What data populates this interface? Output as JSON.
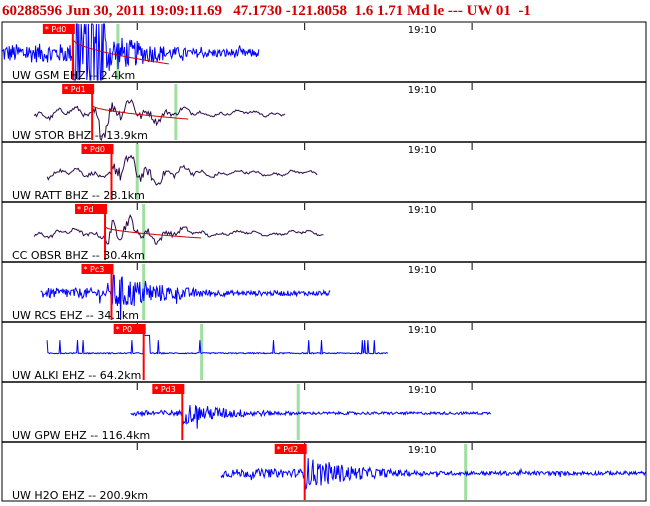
{
  "header": {
    "event_id": "60288596",
    "datetime": "Jun 30, 2011 19:09:11.69",
    "lat": "47.1730",
    "lon": "-121.8058",
    "depth": "1.6",
    "magnitude": "1.71 Md le ---",
    "network": "UW 01",
    "extra": "-1"
  },
  "chart_data": {
    "type": "line",
    "title": "",
    "time_label": "19:10",
    "colors": {
      "trace_blue": "#0000ff",
      "trace_purple": "#2b0a4a",
      "pick_red": "#ff0000",
      "pick_green": "#9fdf9f",
      "model_red": "#cc0000"
    },
    "traces": [
      {
        "label": "UW GSM EHZ -- 2.4km",
        "pick": "* Pd0",
        "color": "#0000ff",
        "t_start": 0.0,
        "t_end": 0.4,
        "p_time": 0.11,
        "s_time": 0.18,
        "amplitude": 1.0,
        "style": "spike",
        "model_curve": true
      },
      {
        "label": "UW STOR BHZ -- 13.9km",
        "pick": "* Pd1",
        "color": "#2b0a4a",
        "t_start": 0.05,
        "t_end": 0.44,
        "p_time": 0.14,
        "s_time": 0.27,
        "amplitude": 0.55,
        "style": "wave",
        "model_curve": true
      },
      {
        "label": "UW RATT BHZ -- 28.1km",
        "pick": "* Pd0",
        "color": "#2b0a4a",
        "t_start": 0.07,
        "t_end": 0.49,
        "p_time": 0.17,
        "s_time": 0.21,
        "amplitude": 0.5,
        "style": "wave",
        "model_curve": false
      },
      {
        "label": "CC OBSR BHZ -- 30.4km",
        "pick": "* Pd",
        "color": "#2b0a4a",
        "t_start": 0.05,
        "t_end": 0.5,
        "p_time": 0.16,
        "s_time": 0.22,
        "amplitude": 0.45,
        "style": "wave",
        "model_curve": true
      },
      {
        "label": "UW RCS EHZ -- 34.1km",
        "pick": "* Pc3",
        "color": "#0000ff",
        "t_start": 0.06,
        "t_end": 0.51,
        "p_time": 0.17,
        "s_time": 0.22,
        "amplitude": 0.55,
        "style": "noise",
        "model_curve": false
      },
      {
        "label": "UW ALKI EHZ -- 64.2km",
        "pick": "* P0",
        "color": "#0000ff",
        "t_start": 0.07,
        "t_end": 0.6,
        "p_time": 0.22,
        "s_time": 0.31,
        "amplitude": 0.3,
        "style": "dropouts",
        "model_curve": false
      },
      {
        "label": "UW GPW EHZ -- 116.4km",
        "pick": "* Pd3",
        "color": "#0000ff",
        "t_start": 0.2,
        "t_end": 0.76,
        "p_time": 0.28,
        "s_time": 0.46,
        "amplitude": 0.3,
        "style": "noise",
        "model_curve": false
      },
      {
        "label": "UW H2O EHZ -- 200.9km",
        "pick": "* Pd2",
        "color": "#0000ff",
        "t_start": 0.34,
        "t_end": 1.0,
        "p_time": 0.47,
        "s_time": 0.72,
        "amplitude": 0.45,
        "style": "noise",
        "model_curve": false
      }
    ]
  }
}
